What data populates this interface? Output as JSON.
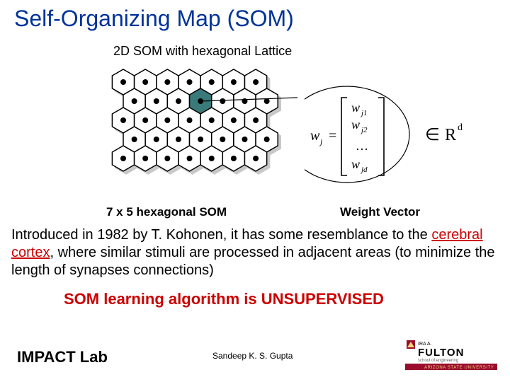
{
  "title": "Self-Organizing Map (SOM)",
  "subtitle": "2D SOM with hexagonal Lattice",
  "captions": {
    "left": "7 x 5 hexagonal SOM",
    "right": "Weight Vector"
  },
  "body": {
    "pre": "Introduced in 1982 by T. Kohonen, it has some resemblance to the ",
    "hl": "cerebral cortex",
    "post": ", where similar stimuli are processed in adjacent areas (to minimize the length of synapses connections)"
  },
  "unsupervised_line": "SOM learning algorithm is UNSUPERVISED",
  "footer": {
    "lab": "IMPACT Lab",
    "author": "Sandeep K. S. Gupta"
  },
  "asu_logo": {
    "top_text": "IRA A.",
    "name": "FULTON",
    "sub": "school of engineering",
    "uni": "ARIZONA STATE UNIVERSITY"
  },
  "formula": {
    "lhs": "w",
    "lhs_sub": "j",
    "eq": "=",
    "rows": [
      "w_{j1}",
      "w_{j2}",
      "...",
      "w_{jd}"
    ],
    "member": "∈",
    "space": "R",
    "dim": "d"
  },
  "rd": {
    "member": "∈",
    "space": "R",
    "dim": "d"
  },
  "hex_lattice": {
    "cols": 7,
    "rows": 5,
    "hex_r": 18,
    "stroke": "#000000",
    "stroke_w": 1.5,
    "fill": "#ffffff",
    "dot_r": 4,
    "dot_fill": "#000000",
    "shadow_fill": "#c8c8c8",
    "shadow_dx": 4,
    "shadow_dy": 4,
    "highlight": {
      "col": 3,
      "row": 1,
      "fill": "#3a7a7a"
    },
    "callout_line_color": "#000000"
  },
  "colors": {
    "title": "#003399",
    "accent": "#cc0000",
    "text": "#000000",
    "bg": "#ffffff"
  }
}
